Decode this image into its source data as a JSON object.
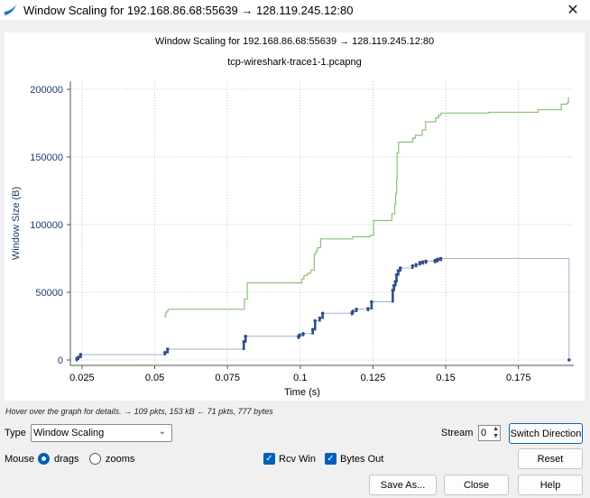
{
  "window": {
    "title": "Window Scaling for 192.168.86.68:55639 → 128.119.245.12:80",
    "close_glyph": "✕"
  },
  "colors": {
    "rcv_win": "#8cc07a",
    "bytes_out": "#2f4f87",
    "axis_text": "#1f3c6e"
  },
  "plot": {
    "title": "Window Scaling for 192.168.86.68:55639 → 128.119.245.12:80",
    "subtitle": "tcp-wireshark-trace1-1.pcapng"
  },
  "chart_data": {
    "type": "line",
    "title": "Window Scaling for 192.168.86.68:55639 → 128.119.245.12:80",
    "subtitle": "tcp-wireshark-trace1-1.pcapng",
    "xlabel": "Time (s)",
    "ylabel": "Window Size (B)",
    "xlim": [
      0.021,
      0.194
    ],
    "ylim": [
      -4000,
      206000
    ],
    "x_ticks": [
      0.025,
      0.05,
      0.075,
      0.1,
      0.125,
      0.15,
      0.175
    ],
    "x_tick_labels": [
      "0.025",
      "0.05",
      "0.075",
      "0.1",
      "0.125",
      "0.15",
      "0.175"
    ],
    "y_ticks": [
      0,
      50000,
      100000,
      150000,
      200000
    ],
    "y_tick_labels": [
      "0",
      "50000",
      "100000",
      "150000",
      "200000"
    ],
    "grid": true,
    "series": [
      {
        "name": "Rcv Win",
        "style": "step",
        "x": [
          0.0532,
          0.0532,
          0.0537,
          0.0539,
          0.0545,
          0.0799,
          0.0808,
          0.0818,
          0.1002,
          0.1006,
          0.1013,
          0.1025,
          0.1036,
          0.1048,
          0.1053,
          0.1058,
          0.1059,
          0.107,
          0.112,
          0.1175,
          0.118,
          0.119,
          0.124,
          0.1252,
          0.1311,
          0.1315,
          0.1325,
          0.1328,
          0.1331,
          0.1333,
          0.1338,
          0.1386,
          0.1387,
          0.1396,
          0.1414,
          0.1419,
          0.1431,
          0.1452,
          0.1466,
          0.1476,
          0.1484,
          0.1532,
          0.1536,
          0.1562,
          0.1577,
          0.162,
          0.1648,
          0.1704,
          0.1727,
          0.1787,
          0.1792,
          0.1817,
          0.1819,
          0.1871,
          0.1897,
          0.1917,
          0.1922
        ],
        "y": [
          32000,
          32000,
          34000,
          35500,
          37500,
          37500,
          45000,
          57000,
          57000,
          60000,
          62500,
          64000,
          66500,
          78000,
          80000,
          82000,
          83000,
          89500,
          89500,
          89500,
          91000,
          91000,
          92000,
          103000,
          103000,
          108000,
          115000,
          123000,
          133000,
          153000,
          161000,
          161000,
          164000,
          166000,
          166000,
          170000,
          176000,
          176000,
          179000,
          181000,
          182500,
          182500,
          182500,
          182500,
          182500,
          182500,
          183000,
          183000,
          183000,
          183000,
          183000,
          185000,
          185000,
          185000,
          189000,
          190000,
          194000
        ]
      },
      {
        "name": "Bytes Out",
        "style": "step-markers",
        "x": [
          0.0232,
          0.0237,
          0.0245,
          0.0535,
          0.0544,
          0.0806,
          0.0812,
          0.0994,
          0.0998,
          0.101,
          0.1043,
          0.1051,
          0.1067,
          0.1077,
          0.1178,
          0.1181,
          0.1193,
          0.1233,
          0.1245,
          0.1318,
          0.1322,
          0.1327,
          0.1331,
          0.1337,
          0.1344,
          0.1386,
          0.1398,
          0.1411,
          0.1421,
          0.1432,
          0.1463,
          0.1468,
          0.1473,
          0.1483,
          0.1924
        ],
        "y": [
          1000,
          2000,
          4000,
          5500,
          8000,
          13500,
          17500,
          17500,
          18500,
          19500,
          22500,
          29000,
          31000,
          34500,
          35000,
          36000,
          37500,
          38000,
          43000,
          51500,
          55000,
          58000,
          63000,
          66000,
          68000,
          69500,
          70500,
          72000,
          72500,
          73000,
          73500,
          74000,
          74500,
          75000,
          0
        ]
      }
    ]
  },
  "status": {
    "hint": "Hover over the graph for details. → 109 pkts, 153 kB ← 71 pkts, 777 bytes"
  },
  "controls": {
    "type_label": "Type",
    "type_value": "Window Scaling",
    "stream_label": "Stream",
    "stream_value": "0",
    "switch_direction": "Switch Direction",
    "mouse_label": "Mouse",
    "drags_label": "drags",
    "zooms_label": "zooms",
    "mouse_mode": "drags",
    "rcv_win_label": "Rcv Win",
    "rcv_win_checked": true,
    "bytes_out_label": "Bytes Out",
    "bytes_out_checked": true,
    "reset": "Reset",
    "save_as": "Save As...",
    "close": "Close",
    "help": "Help"
  }
}
